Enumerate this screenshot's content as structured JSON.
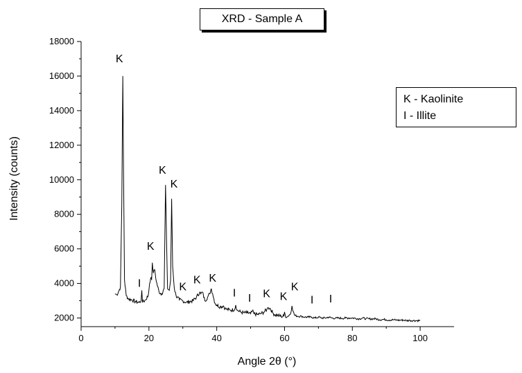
{
  "chart_data": {
    "type": "line",
    "title": "XRD - Sample A",
    "xlabel": "Angle 2θ (°)",
    "ylabel": "Intensity (counts)",
    "xlim": [
      0,
      110
    ],
    "ylim": [
      1500,
      18000
    ],
    "x_ticks": [
      0,
      20,
      40,
      60,
      80,
      100
    ],
    "y_ticks": [
      2000,
      4000,
      6000,
      8000,
      10000,
      12000,
      14000,
      16000,
      18000
    ],
    "grid": false,
    "legend": {
      "placement": "right",
      "entries": [
        "K - Kaolinite",
        "I - Illite"
      ]
    },
    "series": [
      {
        "values": [
          [
            10,
            3400
          ],
          [
            10.5,
            3350
          ],
          [
            11,
            3500
          ],
          [
            11.6,
            3800
          ],
          [
            12.0,
            8500
          ],
          [
            12.3,
            16000
          ],
          [
            12.5,
            10900
          ],
          [
            12.8,
            4200
          ],
          [
            13.3,
            3300
          ],
          [
            14,
            3100
          ],
          [
            15,
            3050
          ],
          [
            16,
            2950
          ],
          [
            17,
            2900
          ],
          [
            17.7,
            3000
          ],
          [
            17.9,
            3600
          ],
          [
            18.1,
            2900
          ],
          [
            19,
            3050
          ],
          [
            19.8,
            3300
          ],
          [
            20.2,
            4000
          ],
          [
            20.5,
            4300
          ],
          [
            20.8,
            4200
          ],
          [
            21.0,
            5200
          ],
          [
            21.3,
            4600
          ],
          [
            21.7,
            4800
          ],
          [
            22.2,
            4100
          ],
          [
            23,
            3500
          ],
          [
            23.8,
            3400
          ],
          [
            24.5,
            3700
          ],
          [
            24.9,
            9700
          ],
          [
            25.2,
            6500
          ],
          [
            25.5,
            3700
          ],
          [
            26.0,
            3600
          ],
          [
            26.4,
            4200
          ],
          [
            26.7,
            8900
          ],
          [
            27.0,
            5000
          ],
          [
            27.5,
            3700
          ],
          [
            28,
            3300
          ],
          [
            29,
            3050
          ],
          [
            30,
            3000
          ],
          [
            31,
            2900
          ],
          [
            32,
            2950
          ],
          [
            33,
            3000
          ],
          [
            34,
            3200
          ],
          [
            35.0,
            3500
          ],
          [
            35.3,
            3400
          ],
          [
            35.8,
            3500
          ],
          [
            36.5,
            3000
          ],
          [
            37.3,
            3200
          ],
          [
            37.9,
            3400
          ],
          [
            38.4,
            3700
          ],
          [
            38.8,
            3400
          ],
          [
            39.5,
            2850
          ],
          [
            40,
            2750
          ],
          [
            41,
            2650
          ],
          [
            42,
            2700
          ],
          [
            42.5,
            2550
          ],
          [
            43,
            2500
          ],
          [
            44,
            2450
          ],
          [
            45.3,
            2500
          ],
          [
            45.6,
            2750
          ],
          [
            46.0,
            2450
          ],
          [
            47,
            2350
          ],
          [
            48,
            2300
          ],
          [
            49,
            2300
          ],
          [
            50,
            2250
          ],
          [
            50.5,
            2400
          ],
          [
            51,
            2250
          ],
          [
            52,
            2200
          ],
          [
            53,
            2250
          ],
          [
            54,
            2350
          ],
          [
            54.8,
            2500
          ],
          [
            55.2,
            2600
          ],
          [
            55.8,
            2550
          ],
          [
            56.5,
            2300
          ],
          [
            57,
            2200
          ],
          [
            58,
            2150
          ],
          [
            59,
            2100
          ],
          [
            59.8,
            2100
          ],
          [
            60.0,
            2350
          ],
          [
            60.3,
            2050
          ],
          [
            61,
            2100
          ],
          [
            61.8,
            2250
          ],
          [
            62.2,
            2700
          ],
          [
            62.5,
            2400
          ],
          [
            63,
            2150
          ],
          [
            64,
            2100
          ],
          [
            65,
            2100
          ],
          [
            66,
            2050
          ],
          [
            67,
            2050
          ],
          [
            68,
            2050
          ],
          [
            69,
            2000
          ],
          [
            70,
            2050
          ],
          [
            71,
            2000
          ],
          [
            72,
            2000
          ],
          [
            73,
            2050
          ],
          [
            74,
            2000
          ],
          [
            75,
            1980
          ],
          [
            76,
            2000
          ],
          [
            77,
            1980
          ],
          [
            78,
            2000
          ],
          [
            79,
            2000
          ],
          [
            80,
            2000
          ],
          [
            81,
            1980
          ],
          [
            82,
            1950
          ],
          [
            83,
            2000
          ],
          [
            84,
            1960
          ],
          [
            85,
            1950
          ],
          [
            86,
            1950
          ],
          [
            87,
            1950
          ],
          [
            88,
            1900
          ],
          [
            89,
            1920
          ],
          [
            90,
            1900
          ],
          [
            91,
            1880
          ],
          [
            92,
            1900
          ],
          [
            93,
            1880
          ],
          [
            94,
            1870
          ],
          [
            95,
            1880
          ],
          [
            96,
            1850
          ],
          [
            97,
            1860
          ],
          [
            98,
            1850
          ],
          [
            99,
            1850
          ],
          [
            100,
            1850
          ]
        ]
      }
    ],
    "annotations": [
      {
        "text": "K",
        "x": 11.3,
        "y": 16800
      },
      {
        "text": "I",
        "x": 17.2,
        "y": 3800
      },
      {
        "text": "K",
        "x": 20.5,
        "y": 5950
      },
      {
        "text": "K",
        "x": 24.0,
        "y": 10350
      },
      {
        "text": "K",
        "x": 27.4,
        "y": 9550
      },
      {
        "text": "K",
        "x": 30.0,
        "y": 3600
      },
      {
        "text": "K",
        "x": 34.2,
        "y": 4000
      },
      {
        "text": "K",
        "x": 38.8,
        "y": 4100
      },
      {
        "text": "I",
        "x": 45.2,
        "y": 3250
      },
      {
        "text": "I",
        "x": 49.7,
        "y": 2950
      },
      {
        "text": "K",
        "x": 54.7,
        "y": 3200
      },
      {
        "text": "K",
        "x": 59.7,
        "y": 3050
      },
      {
        "text": "K",
        "x": 63.0,
        "y": 3600
      },
      {
        "text": "I",
        "x": 68.1,
        "y": 2850
      },
      {
        "text": "I",
        "x": 73.6,
        "y": 2900
      }
    ]
  }
}
